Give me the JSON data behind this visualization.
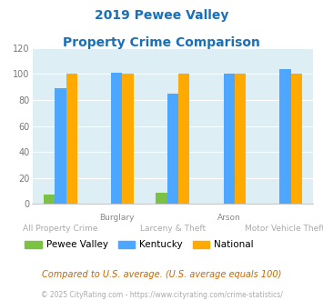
{
  "title_line1": "2019 Pewee Valley",
  "title_line2": "Property Crime Comparison",
  "title_color": "#1a6fba",
  "group_labels_top": [
    "",
    "Burglary",
    "",
    "Arson",
    ""
  ],
  "group_labels_bottom": [
    "All Property Crime",
    "",
    "Larceny & Theft",
    "",
    "Motor Vehicle Theft"
  ],
  "pewee_valley": [
    7,
    0,
    9,
    0,
    0
  ],
  "kentucky": [
    89,
    101,
    85,
    100,
    104
  ],
  "national": [
    100,
    100,
    100,
    100,
    100
  ],
  "bar_color_pv": "#7bc143",
  "bar_color_ky": "#4da6ff",
  "bar_color_nat": "#ffaa00",
  "ylim": [
    0,
    120
  ],
  "yticks": [
    0,
    20,
    40,
    60,
    80,
    100,
    120
  ],
  "bg_color": "#deeef5",
  "grid_color": "#ffffff",
  "footnote1": "Compared to U.S. average. (U.S. average equals 100)",
  "footnote2": "© 2025 CityRating.com - https://www.cityrating.com/crime-statistics/",
  "footnote1_color": "#cc6600",
  "footnote2_color": "#aaaaaa",
  "footnote2_link_color": "#4488cc",
  "legend_labels": [
    "Pewee Valley",
    "Kentucky",
    "National"
  ]
}
